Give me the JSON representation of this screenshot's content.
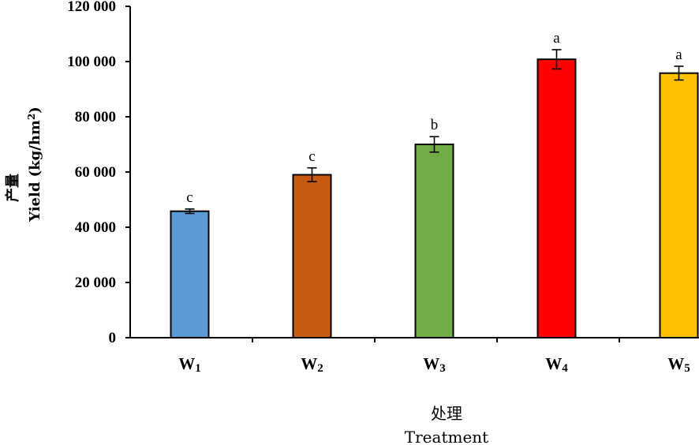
{
  "chart_data": {
    "type": "bar",
    "categories": [
      {
        "base": "W",
        "sub": "1"
      },
      {
        "base": "W",
        "sub": "2"
      },
      {
        "base": "W",
        "sub": "3"
      },
      {
        "base": "W",
        "sub": "4"
      },
      {
        "base": "W",
        "sub": "5"
      }
    ],
    "values": [
      45800,
      59000,
      70000,
      100800,
      95800
    ],
    "errors": [
      800,
      2500,
      2800,
      3500,
      2500
    ],
    "significance": [
      "c",
      "c",
      "b",
      "a",
      "a"
    ],
    "colors": [
      "#5b9bd5",
      "#c55a11",
      "#70ad47",
      "#ff0000",
      "#ffc000"
    ],
    "ylim": [
      0,
      120000
    ],
    "yticks": [
      0,
      20000,
      40000,
      60000,
      80000,
      100000,
      120000
    ],
    "ytick_labels": [
      "0",
      "20 000",
      "40 000",
      "60 000",
      "80 000",
      "100 000",
      "120 000"
    ],
    "ylabel_cn": "产量",
    "ylabel_en": "Yield (kg/hm",
    "ylabel_sup": "2",
    "ylabel_close": ")",
    "xlabel_cn": "处理",
    "xlabel_en": "Treatment",
    "grid": false,
    "legend": "none"
  }
}
